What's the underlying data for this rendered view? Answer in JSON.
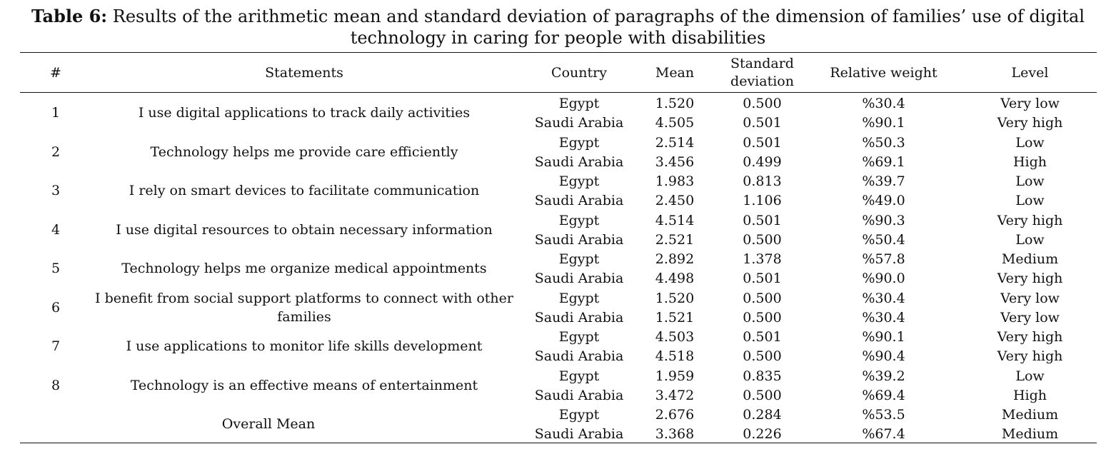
{
  "caption": {
    "label": "Table 6:",
    "text": " Results of the arithmetic mean and standard deviation of paragraphs of the dimension of families’ use of digital technology in caring for people with disabilities"
  },
  "headers": {
    "num": "#",
    "statements": "Statements",
    "country": "Country",
    "mean": "Mean",
    "sd": "Standard deviation",
    "relative_weight": "Relative weight",
    "level": "Level"
  },
  "rows": [
    {
      "num": "1",
      "statement": "I use digital applications to track daily activities",
      "egypt": {
        "country": "Egypt",
        "mean": "1.520",
        "sd": "0.500",
        "rw": "%30.4",
        "level": "Very low"
      },
      "saudi": {
        "country": "Saudi Arabia",
        "mean": "4.505",
        "sd": "0.501",
        "rw": "%90.1",
        "level": "Very high"
      }
    },
    {
      "num": "2",
      "statement": "Technology helps me provide care efficiently",
      "egypt": {
        "country": "Egypt",
        "mean": "2.514",
        "sd": "0.501",
        "rw": "%50.3",
        "level": "Low"
      },
      "saudi": {
        "country": "Saudi Arabia",
        "mean": "3.456",
        "sd": "0.499",
        "rw": "%69.1",
        "level": "High"
      }
    },
    {
      "num": "3",
      "statement": "I rely on smart devices to facilitate communication",
      "egypt": {
        "country": "Egypt",
        "mean": "1.983",
        "sd": "0.813",
        "rw": "%39.7",
        "level": "Low"
      },
      "saudi": {
        "country": "Saudi Arabia",
        "mean": "2.450",
        "sd": "1.106",
        "rw": "%49.0",
        "level": "Low"
      }
    },
    {
      "num": "4",
      "statement": "I use digital resources to obtain necessary information",
      "egypt": {
        "country": "Egypt",
        "mean": "4.514",
        "sd": "0.501",
        "rw": "%90.3",
        "level": "Very high"
      },
      "saudi": {
        "country": "Saudi Arabia",
        "mean": "2.521",
        "sd": "0.500",
        "rw": "%50.4",
        "level": "Low"
      }
    },
    {
      "num": "5",
      "statement": "Technology helps me organize medical appointments",
      "egypt": {
        "country": "Egypt",
        "mean": "2.892",
        "sd": "1.378",
        "rw": "%57.8",
        "level": "Medium"
      },
      "saudi": {
        "country": "Saudi Arabia",
        "mean": "4.498",
        "sd": "0.501",
        "rw": "%90.0",
        "level": "Very high"
      }
    },
    {
      "num": "6",
      "statement": "I benefit from social support platforms to connect with other families",
      "egypt": {
        "country": "Egypt",
        "mean": "1.520",
        "sd": "0.500",
        "rw": "%30.4",
        "level": "Very low"
      },
      "saudi": {
        "country": "Saudi Arabia",
        "mean": "1.521",
        "sd": "0.500",
        "rw": "%30.4",
        "level": "Very low"
      }
    },
    {
      "num": "7",
      "statement": "I use applications to monitor life skills development",
      "egypt": {
        "country": "Egypt",
        "mean": "4.503",
        "sd": "0.501",
        "rw": "%90.1",
        "level": "Very high"
      },
      "saudi": {
        "country": "Saudi Arabia",
        "mean": "4.518",
        "sd": "0.500",
        "rw": "%90.4",
        "level": "Very high"
      }
    },
    {
      "num": "8",
      "statement": "Technology is an effective means of entertainment",
      "egypt": {
        "country": "Egypt",
        "mean": "1.959",
        "sd": "0.835",
        "rw": "%39.2",
        "level": "Low"
      },
      "saudi": {
        "country": "Saudi Arabia",
        "mean": "3.472",
        "sd": "0.500",
        "rw": "%69.4",
        "level": "High"
      }
    },
    {
      "num": "",
      "statement": "Overall Mean",
      "egypt": {
        "country": "Egypt",
        "mean": "2.676",
        "sd": "0.284",
        "rw": "%53.5",
        "level": "Medium"
      },
      "saudi": {
        "country": "Saudi Arabia",
        "mean": "3.368",
        "sd": "0.226",
        "rw": "%67.4",
        "level": "Medium"
      }
    }
  ]
}
